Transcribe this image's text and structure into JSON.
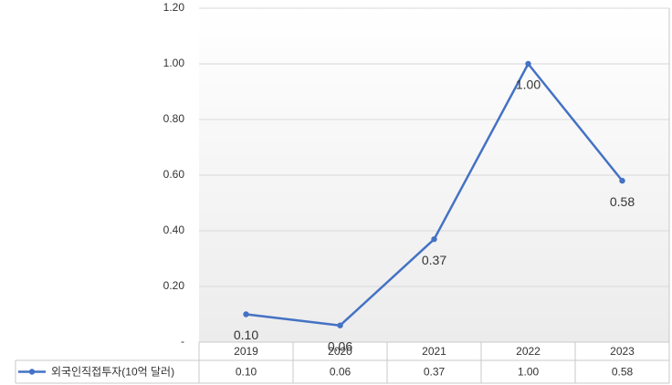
{
  "chart_data": {
    "type": "line",
    "categories": [
      "2019",
      "2020",
      "2021",
      "2022",
      "2023"
    ],
    "series": [
      {
        "name": "외국인직접투자(10억 달러)",
        "color": "#4472c4",
        "values": [
          0.1,
          0.06,
          0.37,
          1.0,
          0.58
        ],
        "value_labels": [
          "0.10",
          "0.06",
          "0.37",
          "1.00",
          "0.58"
        ]
      }
    ],
    "ylim": [
      0,
      1.2
    ],
    "yticks": [
      {
        "value": 0,
        "label": "-"
      },
      {
        "value": 0.2,
        "label": "0.20"
      },
      {
        "value": 0.4,
        "label": "0.40"
      },
      {
        "value": 0.6,
        "label": "0.60"
      },
      {
        "value": 0.8,
        "label": "0.80"
      },
      {
        "value": 1.0,
        "label": "1.00"
      },
      {
        "value": 1.2,
        "label": "1.20"
      }
    ],
    "grid": true,
    "legend": "bottom-table"
  }
}
